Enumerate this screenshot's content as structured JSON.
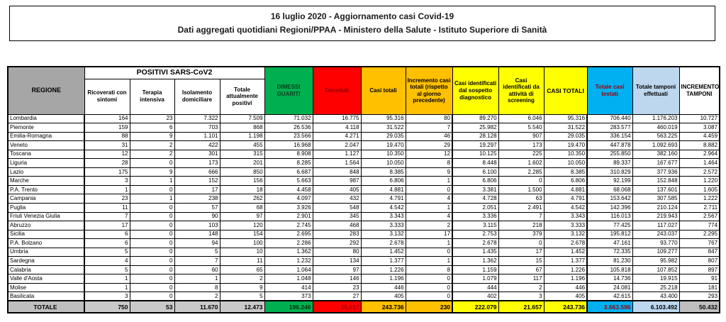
{
  "title": {
    "line1": "16 luglio 2020 - Aggiornamento casi Covid-19",
    "line2": "Dati aggregati quotidiani Regioni/PPAA - Ministero della Salute - Istituto Superiore di Sanità"
  },
  "colors": {
    "green": "#00b050",
    "red": "#ff0000",
    "orange": "#ffc000",
    "yellow": "#ffff00",
    "cyan": "#00b0f0",
    "light_blue": "#bdd7ee",
    "header_gray": "#a6a6a6",
    "total_gray": "#bfbfbf"
  },
  "table": {
    "region_header": "REGIONE",
    "group_header": "POSITIVI SARS-CoV2",
    "columns": [
      {
        "label": "Ricoverati con sintomi"
      },
      {
        "label": "Terapia intensiva"
      },
      {
        "label": "Isolamento domiciliare"
      },
      {
        "label": "Totale attualmente positivi"
      },
      {
        "label": "DIMESSI GUARITI"
      },
      {
        "label": "Deceduti"
      },
      {
        "label": "Casi totali"
      },
      {
        "label": "Incremento casi totali (rispetto al giorno precedente)"
      },
      {
        "label": "Casi identificati dal sospetto diagnostico"
      },
      {
        "label": "Casi identificati da attività di screening"
      },
      {
        "label": "CASI TOTALI"
      },
      {
        "label": "Totale casi testati"
      },
      {
        "label": "Totale tamponi effettuati"
      },
      {
        "label": "INCREMENTO TAMPONI"
      }
    ],
    "rows": [
      {
        "region": "Lombardia",
        "values": [
          "164",
          "23",
          "7.322",
          "7.509",
          "71.032",
          "16.775",
          "95.316",
          "80",
          "89.270",
          "6.046",
          "95.316",
          "706.440",
          "1.176.203",
          "10.727"
        ]
      },
      {
        "region": "Piemonte",
        "values": [
          "159",
          "6",
          "703",
          "868",
          "26.536",
          "4.118",
          "31.522",
          "7",
          "25.982",
          "5.540",
          "31.522",
          "283.577",
          "460.019",
          "3.087"
        ]
      },
      {
        "region": "Emilia-Romagna",
        "values": [
          "88",
          "9",
          "1.101",
          "1.198",
          "23.566",
          "4.271",
          "29.035",
          "46",
          "28.128",
          "907",
          "29.035",
          "336.154",
          "563.225",
          "4.459"
        ]
      },
      {
        "region": "Veneto",
        "values": [
          "31",
          "2",
          "422",
          "455",
          "16.968",
          "2.047",
          "19.470",
          "29",
          "19.297",
          "173",
          "19.470",
          "447.878",
          "1.092.693",
          "8.882"
        ]
      },
      {
        "region": "Toscana",
        "values": [
          "12",
          "2",
          "301",
          "315",
          "8.908",
          "1.127",
          "10.350",
          "12",
          "10.125",
          "225",
          "10.350",
          "255.850",
          "382.160",
          "2.964"
        ]
      },
      {
        "region": "Liguria",
        "values": [
          "28",
          "0",
          "173",
          "201",
          "8.285",
          "1.564",
          "10.050",
          "8",
          "8.448",
          "1.602",
          "10.050",
          "89.337",
          "167.677",
          "1.464"
        ]
      },
      {
        "region": "Lazio",
        "values": [
          "175",
          "9",
          "666",
          "850",
          "6.687",
          "848",
          "8.385",
          "9",
          "6.100",
          "2.285",
          "8.385",
          "310.829",
          "377.936",
          "2.572"
        ]
      },
      {
        "region": "Marche",
        "values": [
          "3",
          "1",
          "152",
          "156",
          "5.663",
          "987",
          "6.806",
          "1",
          "6.806",
          "0",
          "6.806",
          "92.199",
          "152.848",
          "1.220"
        ]
      },
      {
        "region": "P.A. Trento",
        "values": [
          "1",
          "0",
          "17",
          "18",
          "4.458",
          "405",
          "4.881",
          "0",
          "3.381",
          "1.500",
          "4.881",
          "68.068",
          "137.601",
          "1.605"
        ]
      },
      {
        "region": "Campania",
        "values": [
          "23",
          "1",
          "238",
          "262",
          "4.097",
          "432",
          "4.791",
          "4",
          "4.728",
          "63",
          "4.791",
          "153.642",
          "307.585",
          "1.222"
        ]
      },
      {
        "region": "Puglia",
        "values": [
          "11",
          "0",
          "57",
          "68",
          "3.926",
          "548",
          "4.542",
          "1",
          "2.051",
          "2.491",
          "4.542",
          "142.396",
          "210.124",
          "2.711"
        ]
      },
      {
        "region": "Friuli Venezia Giulia",
        "values": [
          "7",
          "0",
          "90",
          "97",
          "2.901",
          "345",
          "3.343",
          "4",
          "3.336",
          "7",
          "3.343",
          "116.013",
          "219.943",
          "2.567"
        ]
      },
      {
        "region": "Abruzzo",
        "values": [
          "17",
          "0",
          "103",
          "120",
          "2.745",
          "468",
          "3.333",
          "2",
          "3.115",
          "218",
          "3.333",
          "77.425",
          "117.027",
          "774"
        ]
      },
      {
        "region": "Sicilia",
        "values": [
          "6",
          "0",
          "148",
          "154",
          "2.695",
          "283",
          "3.132",
          "17",
          "2.753",
          "379",
          "3.132",
          "195.812",
          "243.037",
          "2.295"
        ]
      },
      {
        "region": "P.A. Bolzano",
        "values": [
          "6",
          "0",
          "94",
          "100",
          "2.286",
          "292",
          "2.678",
          "1",
          "2.678",
          "0",
          "2.678",
          "47.161",
          "93.770",
          "767"
        ]
      },
      {
        "region": "Umbria",
        "values": [
          "5",
          "0",
          "5",
          "10",
          "1.362",
          "80",
          "1.452",
          "0",
          "1.435",
          "17",
          "1.452",
          "72.335",
          "109.277",
          "847"
        ]
      },
      {
        "region": "Sardegna",
        "values": [
          "4",
          "0",
          "7",
          "11",
          "1.232",
          "134",
          "1.377",
          "1",
          "1.362",
          "15",
          "1.377",
          "81.230",
          "95.982",
          "807"
        ]
      },
      {
        "region": "Calabria",
        "values": [
          "5",
          "0",
          "60",
          "65",
          "1.064",
          "97",
          "1.226",
          "8",
          "1.159",
          "67",
          "1.226",
          "105.818",
          "107.852",
          "897"
        ]
      },
      {
        "region": "Valle d'Aosta",
        "values": [
          "1",
          "0",
          "1",
          "2",
          "1.048",
          "146",
          "1.196",
          "0",
          "1.079",
          "117",
          "1.196",
          "14.736",
          "19.915",
          "91"
        ]
      },
      {
        "region": "Molise",
        "values": [
          "1",
          "0",
          "8",
          "9",
          "414",
          "23",
          "446",
          "0",
          "444",
          "2",
          "446",
          "24.081",
          "25.218",
          "181"
        ]
      },
      {
        "region": "Basilicata",
        "values": [
          "3",
          "0",
          "2",
          "5",
          "373",
          "27",
          "405",
          "0",
          "402",
          "3",
          "405",
          "42.615",
          "43.400",
          "293"
        ]
      }
    ],
    "total_row": {
      "region": "TOTALE",
      "values": [
        "750",
        "53",
        "11.670",
        "12.473",
        "196.246",
        "35.017",
        "243.736",
        "230",
        "222.079",
        "21.657",
        "243.736",
        "3.663.596",
        "6.103.492",
        "50.432"
      ]
    }
  }
}
